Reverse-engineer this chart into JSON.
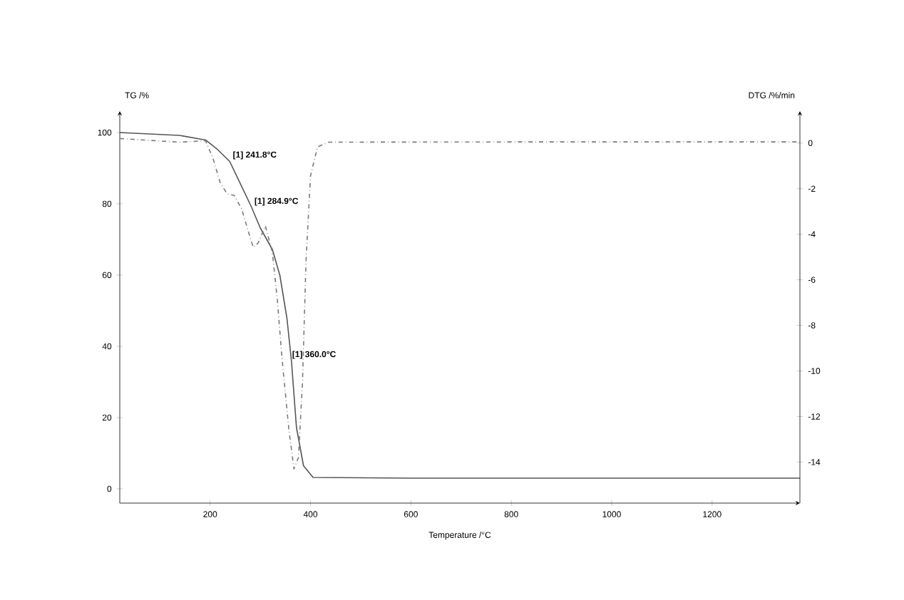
{
  "chart_data": {
    "type": "line",
    "xlabel": "Temperature /°C",
    "ylabel": "TG /%",
    "y2label": "DTG /%/min",
    "xlim": [
      20,
      1375
    ],
    "xticks": [
      200,
      400,
      600,
      800,
      1000,
      1200
    ],
    "ylim": [
      -4,
      106
    ],
    "yticks": [
      0,
      20,
      40,
      60,
      80,
      100
    ],
    "y2lim": [
      -15.8,
      1.4
    ],
    "y2ticks": [
      0,
      -2,
      -4,
      -6,
      -8,
      -10,
      -12,
      -14
    ],
    "series": [
      {
        "color": "#555555",
        "line_style": "solid",
        "x": [
          20,
          139,
          191,
          215,
          239,
          282,
          300,
          324,
          339,
          353,
          362,
          372,
          386,
          405,
          600,
          1000,
          1375
        ],
        "values": [
          100,
          99.2,
          97.9,
          95.2,
          91.9,
          79.2,
          73.2,
          67.2,
          59.9,
          47.9,
          35.9,
          17.2,
          6.5,
          3.2,
          3,
          3,
          3
        ]
      },
      {
        "axis": "y2",
        "color": "#7a7a7a",
        "line_style": "dashed",
        "x": [
          20,
          139,
          191,
          206,
          220,
          234,
          248,
          263,
          277,
          286,
          296,
          310,
          324,
          334,
          343,
          357,
          367,
          376,
          384,
          391,
          400,
          414,
          436,
          800,
          1375
        ],
        "values": [
          0.2,
          0.04,
          0.1,
          -0.69,
          -1.74,
          -2.23,
          -2.3,
          -2.9,
          -3.95,
          -4.58,
          -4.37,
          -3.63,
          -4.8,
          -6.9,
          -9.4,
          -12.6,
          -14.3,
          -13.8,
          -10.5,
          -5.2,
          -1.43,
          -0.17,
          0.04,
          0.05,
          0.05
        ]
      }
    ],
    "annotations": [
      {
        "text": "[1] 241.8°C",
        "x": 241.8,
        "y": 92
      },
      {
        "text": "[1] 284.9°C",
        "x": 284.9,
        "y": 79
      },
      {
        "text": "[1] 360.0°C",
        "x": 360,
        "y": 36
      }
    ]
  }
}
